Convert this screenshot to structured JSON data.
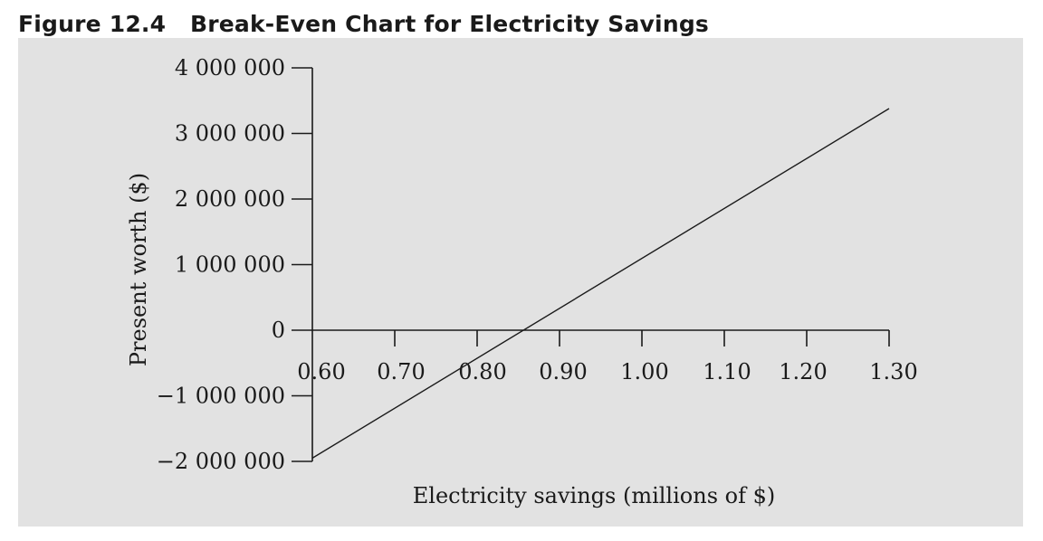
{
  "figure": {
    "label": "Figure 12.4",
    "title": "Break-Even Chart for Electricity Savings"
  },
  "chart_data": {
    "type": "line",
    "xlabel": "Electricity savings (millions of $)",
    "ylabel": "Present worth ($)",
    "xlim": [
      0.6,
      1.3
    ],
    "ylim": [
      -2000000,
      4000000
    ],
    "x_ticks": [
      0.6,
      0.7,
      0.8,
      0.9,
      1.0,
      1.1,
      1.2,
      1.3
    ],
    "x_tick_labels": [
      "0.60",
      "0.70",
      "0.80",
      "0.90",
      "1.00",
      "1.10",
      "1.20",
      "1.30"
    ],
    "y_ticks": [
      4000000,
      3000000,
      2000000,
      1000000,
      0,
      -1000000,
      -2000000
    ],
    "y_tick_labels": [
      "4 000 000",
      "3 000 000",
      "2 000 000",
      "1 000 000",
      "0",
      "−1 000 000",
      "−2 000 000"
    ],
    "series": [
      {
        "x": [
          0.6,
          1.3
        ],
        "y": [
          -1950000,
          3380000
        ]
      }
    ],
    "grid": false,
    "colors": {
      "line": "#1a1a1a",
      "axis": "#1a1a1a",
      "background": "#e2e2e2"
    }
  }
}
